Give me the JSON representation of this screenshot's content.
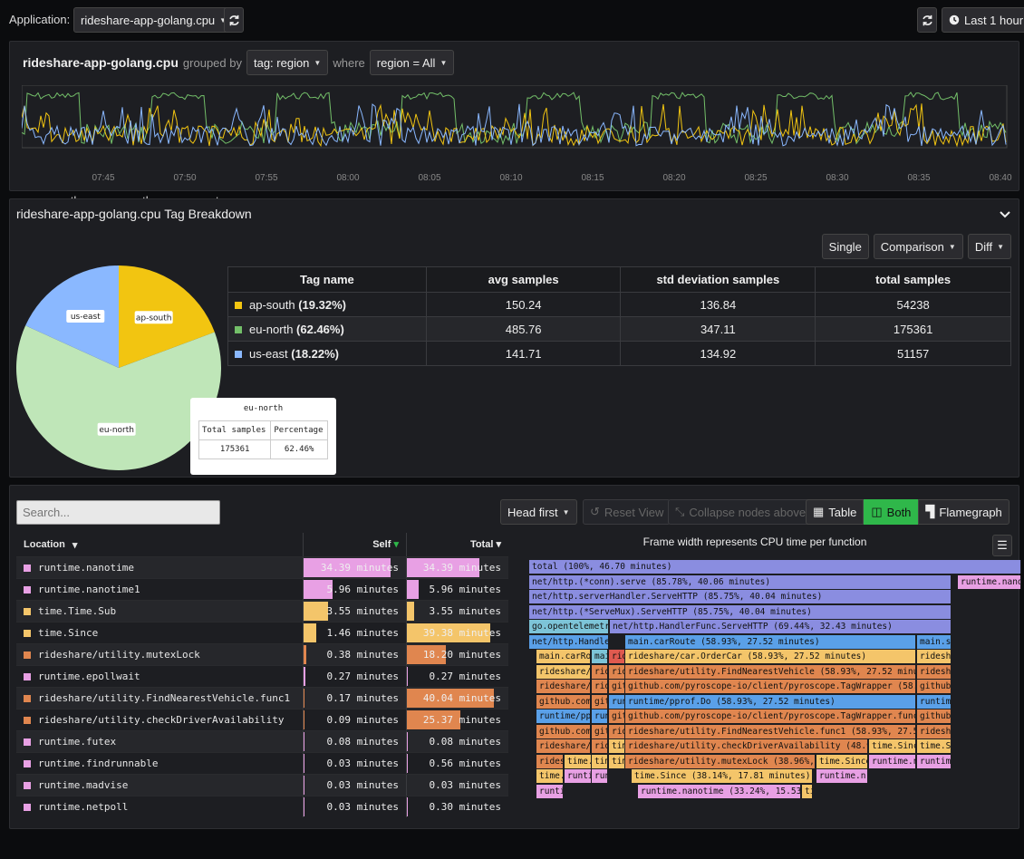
{
  "header": {
    "app_label": "Application:",
    "app_value": "rideshare-app-golang.cpu",
    "time_label": "Last 1 hour"
  },
  "timeline": {
    "title": "rideshare-app-golang.cpu",
    "grouped_by": "grouped by",
    "group_value": "tag: region",
    "where": "where",
    "filter_value": "region = All",
    "ticks": [
      "07:45",
      "07:50",
      "07:55",
      "08:00",
      "08:05",
      "08:10",
      "08:15",
      "08:20",
      "08:25",
      "08:30",
      "08:35",
      "08:40"
    ],
    "legend": [
      {
        "name": "ap-south",
        "color": "#f2c511"
      },
      {
        "name": "eu-north",
        "color": "#73bf69"
      },
      {
        "name": "us-east",
        "color": "#8ab8ff"
      }
    ]
  },
  "breakdown": {
    "title": "rideshare-app-golang.cpu Tag Breakdown",
    "btn_single": "Single",
    "btn_comparison": "Comparison",
    "btn_diff": "Diff",
    "columns": [
      "Tag name",
      "avg samples",
      "std deviation samples",
      "total samples"
    ],
    "rows": [
      {
        "name": "ap-south",
        "pct": "(19.32%)",
        "avg": "150.24",
        "std": "136.84",
        "total": "54238",
        "color": "#f2c511"
      },
      {
        "name": "eu-north",
        "pct": "(62.46%)",
        "avg": "485.76",
        "std": "347.11",
        "total": "175361",
        "color": "#73bf69"
      },
      {
        "name": "us-east",
        "pct": "(18.22%)",
        "avg": "141.71",
        "std": "134.92",
        "total": "51157",
        "color": "#8ab8ff"
      }
    ],
    "pie_labels": {
      "ap": "ap-south",
      "eu": "eu-north",
      "us": "us-east"
    },
    "pie_shares": {
      "ap": 19.32,
      "eu": 62.46,
      "us": 18.22
    },
    "tooltip": {
      "title": "eu-north",
      "col1": "Total samples",
      "col2": "Percentage",
      "v1": "175361",
      "v2": "62.46%"
    }
  },
  "profile": {
    "search_placeholder": "Search...",
    "head_first": "Head first",
    "reset_view": "Reset View",
    "collapse": "Collapse nodes above",
    "tab_table": "Table",
    "tab_both": "Both",
    "tab_flame": "Flamegraph",
    "flame_title": "Frame width represents CPU time per function",
    "col_location": "Location",
    "col_self": "Self",
    "col_total": "Total",
    "rows": [
      {
        "name": "runtime.nanotime",
        "self": "34.39 minutes",
        "total": "34.39 minutes",
        "color": "#e8a0e4",
        "selfpct": 85,
        "totpct": 71
      },
      {
        "name": "runtime.nanotime1",
        "self": "5.96 minutes",
        "total": "5.96 minutes",
        "color": "#e8a0e4",
        "selfpct": 28,
        "totpct": 12
      },
      {
        "name": "time.Time.Sub",
        "self": "3.55 minutes",
        "total": "3.55 minutes",
        "color": "#f4c56a",
        "selfpct": 24,
        "totpct": 7
      },
      {
        "name": "time.Since",
        "self": "1.46 minutes",
        "total": "39.38 minutes",
        "color": "#f4c56a",
        "selfpct": 12,
        "totpct": 82
      },
      {
        "name": "rideshare/utility.mutexLock",
        "self": "0.38 minutes",
        "total": "18.20 minutes",
        "color": "#e0864f",
        "selfpct": 3,
        "totpct": 38
      },
      {
        "name": "runtime.epollwait",
        "self": "0.27 minutes",
        "total": "0.27 minutes",
        "color": "#e8a0e4",
        "selfpct": 2,
        "totpct": 1
      },
      {
        "name": "rideshare/utility.FindNearestVehicle.func1",
        "self": "0.17 minutes",
        "total": "40.04 minutes",
        "color": "#e0864f",
        "selfpct": 1,
        "totpct": 86
      },
      {
        "name": "rideshare/utility.checkDriverAvailability",
        "self": "0.09 minutes",
        "total": "25.37 minutes",
        "color": "#e0864f",
        "selfpct": 1,
        "totpct": 53
      },
      {
        "name": "runtime.futex",
        "self": "0.08 minutes",
        "total": "0.08 minutes",
        "color": "#e8a0e4",
        "selfpct": 1,
        "totpct": 1
      },
      {
        "name": "runtime.findrunnable",
        "self": "0.03 minutes",
        "total": "0.56 minutes",
        "color": "#e8a0e4",
        "selfpct": 1,
        "totpct": 1
      },
      {
        "name": "runtime.madvise",
        "self": "0.03 minutes",
        "total": "0.03 minutes",
        "color": "#e8a0e4",
        "selfpct": 1,
        "totpct": 0
      },
      {
        "name": "runtime.netpoll",
        "self": "0.03 minutes",
        "total": "0.30 minutes",
        "color": "#e8a0e4",
        "selfpct": 1,
        "totpct": 1
      }
    ],
    "flame": {
      "total": "total (100%, 46.70 minutes)",
      "conn_serve": "net/http.(*conn).serve (85.78%, 40.06 minutes)",
      "nanot_right": "runtime.nanot",
      "server_handler": "net/http.serverHandler.ServeHTTP (85.75%, 40.04 minutes)",
      "servemux": "net/http.(*ServeMux).ServeHTTP (85.75%, 40.04 minutes)",
      "otel": "go.opentelemetry.",
      "handlerfunc": "net/http.HandlerFunc.ServeHTTP (69.44%, 32.43 minutes)",
      "handlerf": "net/http.HandlerF",
      "carroute": "main.carRoute (58.93%, 27.52 minutes)",
      "mainsc": "main.sc",
      "maincarrou": "main.carRou",
      "main": "mai",
      "orderCar": "rideshare/car.OrderCar (58.93%, 27.52 minutes)",
      "rideshare_short": "rideshare",
      "ridesh": "rideshare/c",
      "rid": "rid",
      "find": "rideshare/utility.FindNearestVehicle (58.93%, 27.52 minutes)",
      "rideshare_u": "rideshare/u",
      "tagwrap": "github.com/pyroscope-io/client/pyroscope.TagWrapper (58.93%, 27.52 minutes)",
      "github_short": "github.",
      "github_com": "github.com/",
      "git": "git",
      "pprofdo": "runtime/pprof.Do (58.93%, 27.52 minutes)",
      "runtime_short": "runtime",
      "runtime_pprof": "runtime/ppr",
      "run": "run",
      "tagwrap_func": "github.com/pyroscope-io/client/pyroscope.TagWrapper.func1 (58",
      "findfunc": "rideshare/utility.FindNearestVehicle.func1 (58.93%, 27.52 min",
      "checkdriver": "rideshare/utility.checkDriverAvailability (48.9%, 2",
      "timesince": "time.Since",
      "timesi": "time.Si",
      "rides": "rides",
      "tim": "tim",
      "time_": "time.",
      "mutexlock": "rideshare/utility.mutexLock (38.96%, 18.",
      "timesince2": "time.Since",
      "runtimen": "runtime.n",
      "runtimei": "runtimei",
      "runti": "runti",
      "timesince_big": "time.Since (38.14%, 17.81 minutes)",
      "runtimen2": "runtime.n",
      "nanotime_big": "runtime.nanotime (33.24%, 15.53 mi",
      "ti": "ti"
    }
  }
}
